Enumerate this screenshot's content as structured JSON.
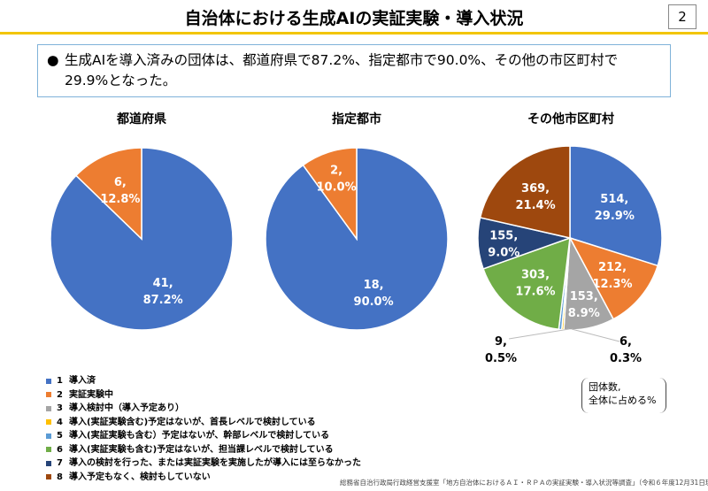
{
  "header": {
    "title": "自治体における生成AIの実証実験・導入状況",
    "page_number": "2"
  },
  "summary": {
    "bullet": "●",
    "text": "生成AIを導入済みの団体は、都道府県で87.2%、指定都市で90.0%、その他の市区町村で29.9%となった。"
  },
  "colors": [
    "#4472C4",
    "#ED7D31",
    "#A5A5A5",
    "#FFC000",
    "#5B9BD5",
    "#70AD47",
    "#264478",
    "#9E480E"
  ],
  "chart_data": [
    {
      "type": "pie",
      "title": "都道府県",
      "values": [
        41,
        6
      ],
      "categories": [
        "1",
        "2"
      ],
      "labels": [
        "41,\n87.2%",
        "6,\n12.8%"
      ],
      "percent": [
        87.2,
        12.8
      ]
    },
    {
      "type": "pie",
      "title": "指定都市",
      "values": [
        18,
        2
      ],
      "categories": [
        "1",
        "2"
      ],
      "labels": [
        "18,\n90.0%",
        "2,\n10.0%"
      ],
      "percent": [
        90.0,
        10.0
      ]
    },
    {
      "type": "pie",
      "title": "その他市区町村",
      "values": [
        514,
        212,
        153,
        6,
        9,
        303,
        155,
        369
      ],
      "categories": [
        "1",
        "2",
        "3",
        "4",
        "5",
        "6",
        "7",
        "8"
      ],
      "labels": [
        "514,\n29.9%",
        "212,\n12.3%",
        "153,\n8.9%",
        "6,\n0.3%",
        "9,\n0.5%",
        "303,\n17.6%",
        "155,\n9.0%",
        "369,\n21.4%"
      ],
      "percent": [
        29.9,
        12.3,
        8.9,
        0.3,
        0.5,
        17.6,
        9.0,
        21.4
      ]
    }
  ],
  "legend": [
    {
      "num": "1",
      "label": "導入済"
    },
    {
      "num": "2",
      "label": "実証実験中"
    },
    {
      "num": "3",
      "label": "導入検討中（導入予定あり）"
    },
    {
      "num": "4",
      "label": "導入(実証実験含む)予定はないが、首長レベルで検討している"
    },
    {
      "num": "5",
      "label": "導入(実証実験も含む）予定はないが、幹部レベルで検討している"
    },
    {
      "num": "6",
      "label": "導入(実証実験も含む)予定はないが、担当課レベルで検討している"
    },
    {
      "num": "7",
      "label": "導入の検討を行った、または実証実験を実施したが導入には至らなかった"
    },
    {
      "num": "8",
      "label": "導入予定もなく、検討もしていない"
    }
  ],
  "note": {
    "line1": "団体数,",
    "line2": "全体に占める%"
  },
  "source": "総務省自治行政局行政経営支援室「地方自治体におけるＡＩ・ＲＰＡの実証実験・導入状況等調査」（令和６年度12月31日現在）"
}
